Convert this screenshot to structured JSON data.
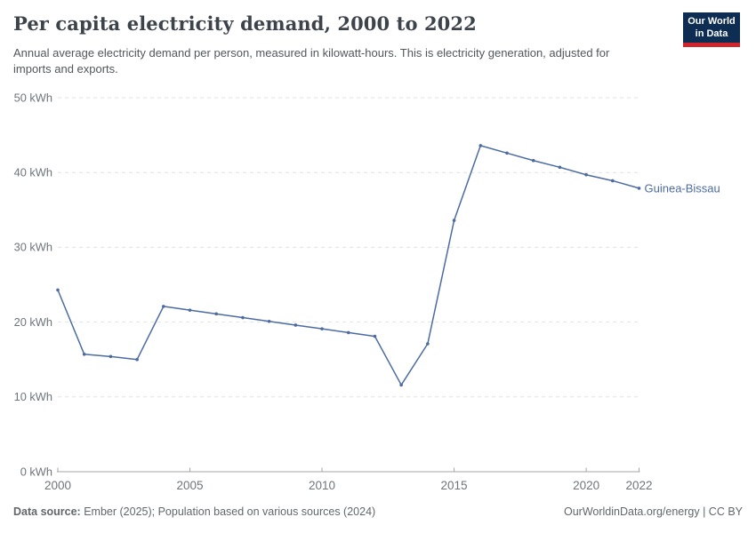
{
  "header": {
    "title": "Per capita electricity demand, 2000 to 2022",
    "subtitle": "Annual average electricity demand per person, measured in kilowatt-hours. This is electricity generation, adjusted for imports and exports.",
    "logo": {
      "line1": "Our World",
      "line2": "in Data",
      "bg_color": "#0d2d53",
      "accent_color": "#d0252d"
    }
  },
  "chart_data": {
    "type": "line",
    "title": "Per capita electricity demand, 2000 to 2022",
    "x": [
      2000,
      2001,
      2002,
      2003,
      2004,
      2005,
      2006,
      2007,
      2008,
      2009,
      2010,
      2011,
      2012,
      2013,
      2014,
      2015,
      2016,
      2017,
      2018,
      2019,
      2020,
      2021,
      2022
    ],
    "series": [
      {
        "name": "Guinea-Bissau",
        "color": "#4c6ba3",
        "values": [
          24.3,
          15.7,
          15.4,
          15.0,
          22.1,
          21.6,
          21.1,
          20.6,
          20.1,
          19.6,
          19.1,
          18.6,
          18.1,
          11.6,
          17.1,
          33.6,
          43.6,
          42.6,
          41.6,
          40.7,
          39.7,
          38.9,
          37.9
        ]
      }
    ],
    "xlabel": "",
    "ylabel": "",
    "y_ticks": [
      0,
      10,
      20,
      30,
      40,
      50
    ],
    "y_tick_suffix": " kWh",
    "x_ticks": [
      2000,
      2005,
      2010,
      2015,
      2020,
      2022
    ],
    "ylim": [
      0,
      50
    ],
    "xlim": [
      2000,
      2022
    ],
    "grid": "horizontal-dashed",
    "legend": "entity-label-right-of-line"
  },
  "footer": {
    "source_label": "Data source:",
    "source_text": "Ember (2025); Population based on various sources (2024)",
    "credit": "OurWorldinData.org/energy | CC BY"
  }
}
